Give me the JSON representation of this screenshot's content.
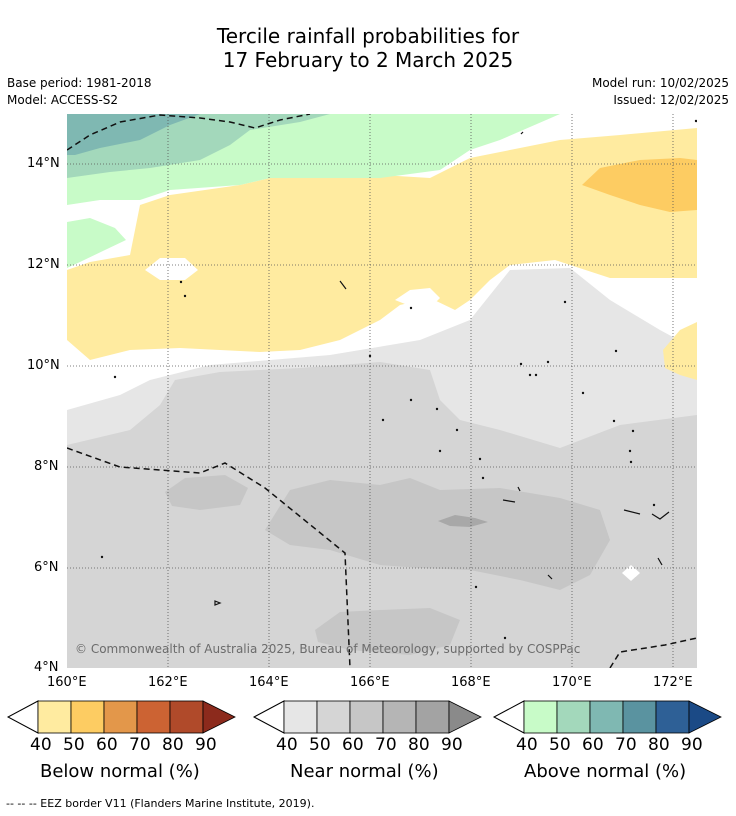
{
  "title": {
    "line1": "Tercile rainfall probabilities for",
    "line2": "17 February to 2 March 2025"
  },
  "meta": {
    "base_period": "Base period: 1981-2018",
    "model": "Model: ACCESS-S2",
    "model_run": "Model run: 10/02/2025",
    "issued": "Issued: 12/02/2025"
  },
  "axes": {
    "y_ticks": [
      "14°N",
      "12°N",
      "10°N",
      "8°N",
      "6°N",
      "4°N"
    ],
    "x_ticks": [
      "160°E",
      "162°E",
      "164°E",
      "166°E",
      "168°E",
      "170°E",
      "172°E"
    ]
  },
  "map": {
    "lon_range": [
      160,
      172.5
    ],
    "lat_range": [
      4,
      15
    ],
    "credit": "© Commonwealth of Australia 2025, Bureau of Meteorology, supported by COSPPac",
    "categories": {
      "below": "Below normal (%)",
      "near": "Near normal (%)",
      "above": "Above normal (%)"
    }
  },
  "colorbars": [
    {
      "label": "Below normal (%)",
      "ticks": [
        "40",
        "50",
        "60",
        "70",
        "80",
        "90"
      ],
      "colors": [
        "#ffeba0",
        "#fdcc62",
        "#e3974a",
        "#cc6333",
        "#b04a2a",
        "#8c2a1c"
      ]
    },
    {
      "label": "Near normal (%)",
      "ticks": [
        "40",
        "50",
        "60",
        "70",
        "80",
        "90"
      ],
      "colors": [
        "#e6e6e6",
        "#d5d5d5",
        "#c6c6c6",
        "#b5b5b5",
        "#a3a3a3",
        "#8a8a8a"
      ]
    },
    {
      "label": "Above normal (%)",
      "ticks": [
        "40",
        "50",
        "60",
        "70",
        "80",
        "90"
      ],
      "colors": [
        "#c8fbc8",
        "#a3d8bb",
        "#7fb8b2",
        "#5a93a0",
        "#2e6096",
        "#1b4a86"
      ]
    }
  ],
  "footer": "--  --  -- EEZ border V11 (Flanders Marine Institute, 2019)."
}
